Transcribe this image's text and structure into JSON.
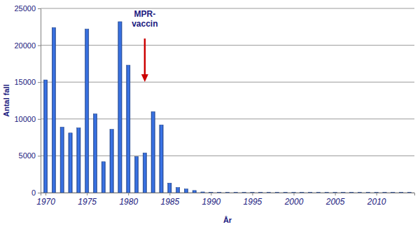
{
  "chart_data": {
    "type": "bar",
    "x_label": "År",
    "y_label": "Antal fall",
    "x": [
      1970,
      1971,
      1972,
      1973,
      1974,
      1975,
      1976,
      1977,
      1978,
      1979,
      1980,
      1981,
      1982,
      1983,
      1984,
      1985,
      1986,
      1987,
      1988,
      1989,
      1990,
      1991,
      1992,
      1993,
      1994,
      1995,
      1996,
      1997,
      1998,
      1999,
      2000,
      2001,
      2002,
      2003,
      2004,
      2005,
      2006,
      2007,
      2008,
      2009,
      2010,
      2011,
      2012,
      2013,
      2014
    ],
    "values": [
      15300,
      22400,
      8900,
      8100,
      8800,
      22200,
      10700,
      4200,
      8600,
      23200,
      17300,
      4900,
      5400,
      11000,
      9200,
      1300,
      700,
      500,
      300,
      100,
      60,
      50,
      40,
      40,
      40,
      40,
      40,
      40,
      40,
      40,
      40,
      40,
      40,
      40,
      40,
      40,
      40,
      40,
      40,
      40,
      40,
      40,
      40,
      40,
      40
    ],
    "color": "#3366cc",
    "xlim": [
      1969.4,
      2014.6
    ],
    "xticks": [
      1970,
      1975,
      1980,
      1985,
      1990,
      1995,
      2000,
      2005,
      2010
    ],
    "ylim": [
      0,
      25000
    ],
    "yticks": [
      0,
      5000,
      10000,
      15000,
      20000,
      25000
    ],
    "grid": true,
    "annotations": [
      {
        "text": "MPR-vaccin",
        "x": 1982
      }
    ]
  }
}
